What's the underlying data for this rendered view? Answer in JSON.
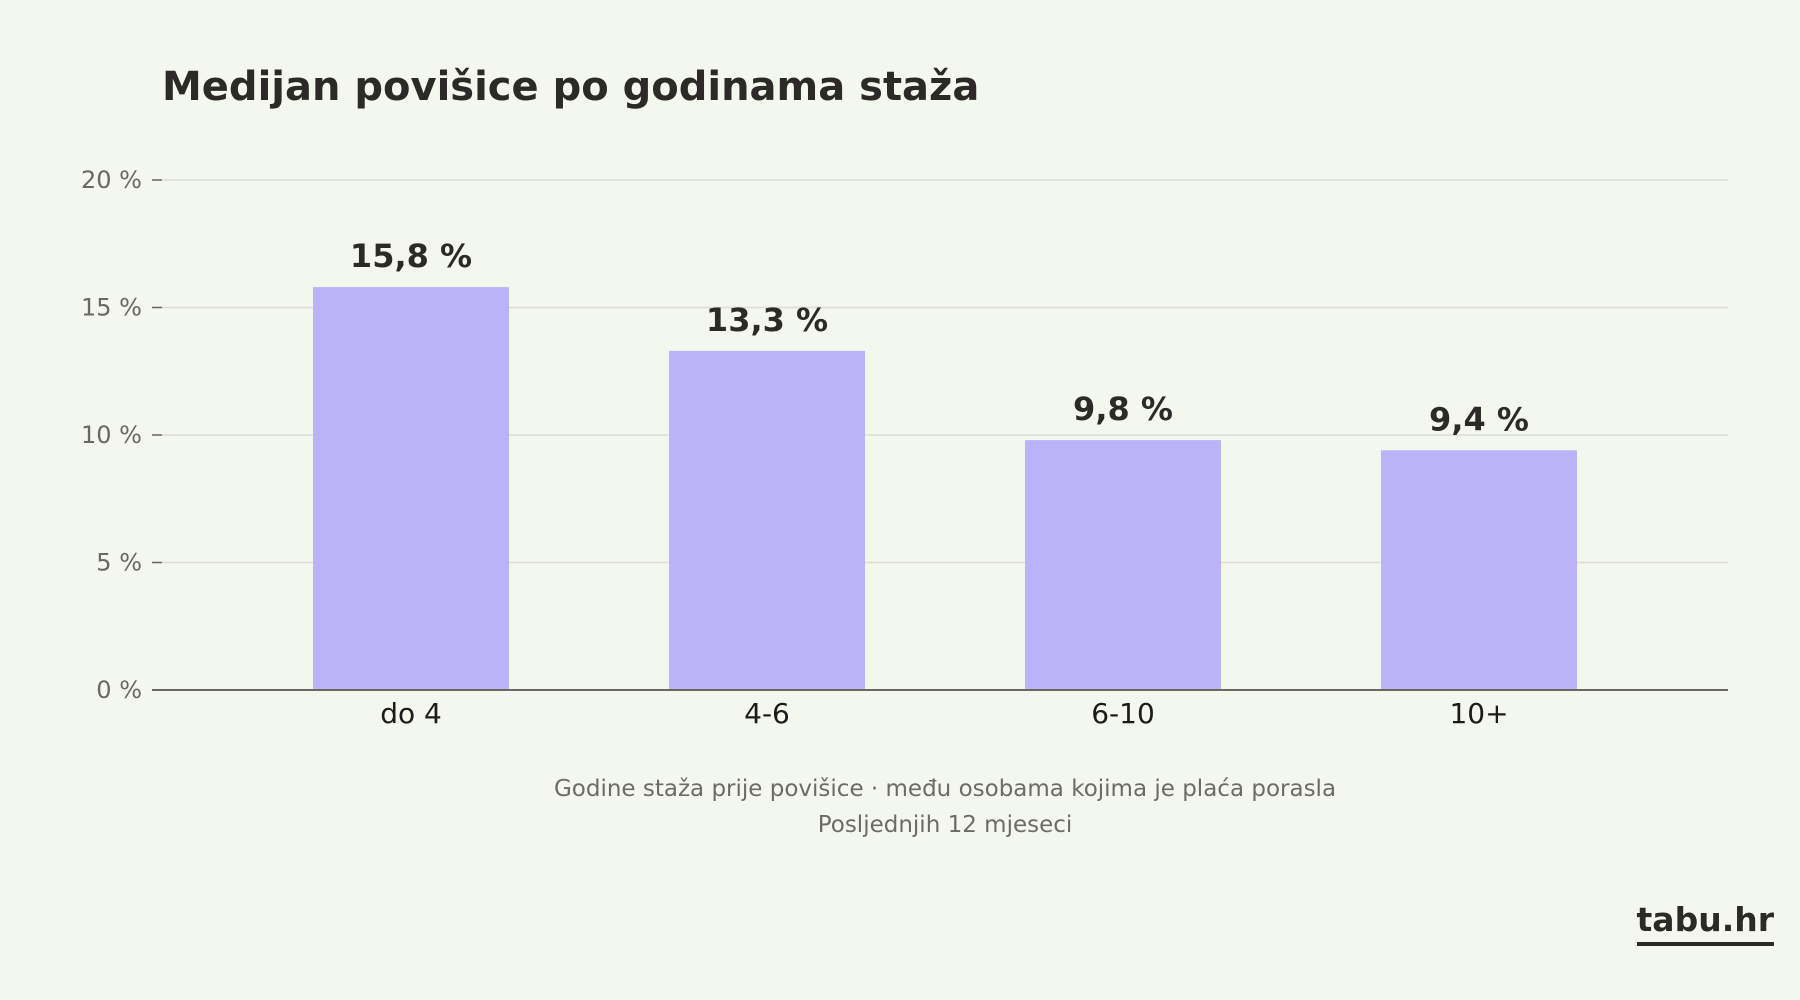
{
  "chart_data": {
    "type": "bar",
    "title": "Medijan povišice po godinama staža",
    "categories": [
      "do 4",
      "4-6",
      "6-10",
      "10+"
    ],
    "values": [
      15.8,
      13.3,
      9.8,
      9.4
    ],
    "value_labels": [
      "15,8 %",
      "13,3 %",
      "9,8 %",
      "9,4 %"
    ],
    "yticks": [
      "0 %",
      "5 %",
      "10 %",
      "15 %",
      "20 %"
    ],
    "ytick_values": [
      0,
      5,
      10,
      15,
      20
    ],
    "ylim": [
      0,
      20
    ],
    "grid": true,
    "bar_color": "#bcb2f7"
  },
  "notes": {
    "line1": "Godine staža prije povišice  ·  među osobama kojima je plaća porasla",
    "line2": "Posljednjih 12 mjeseci"
  },
  "brand": "tabu.hr"
}
